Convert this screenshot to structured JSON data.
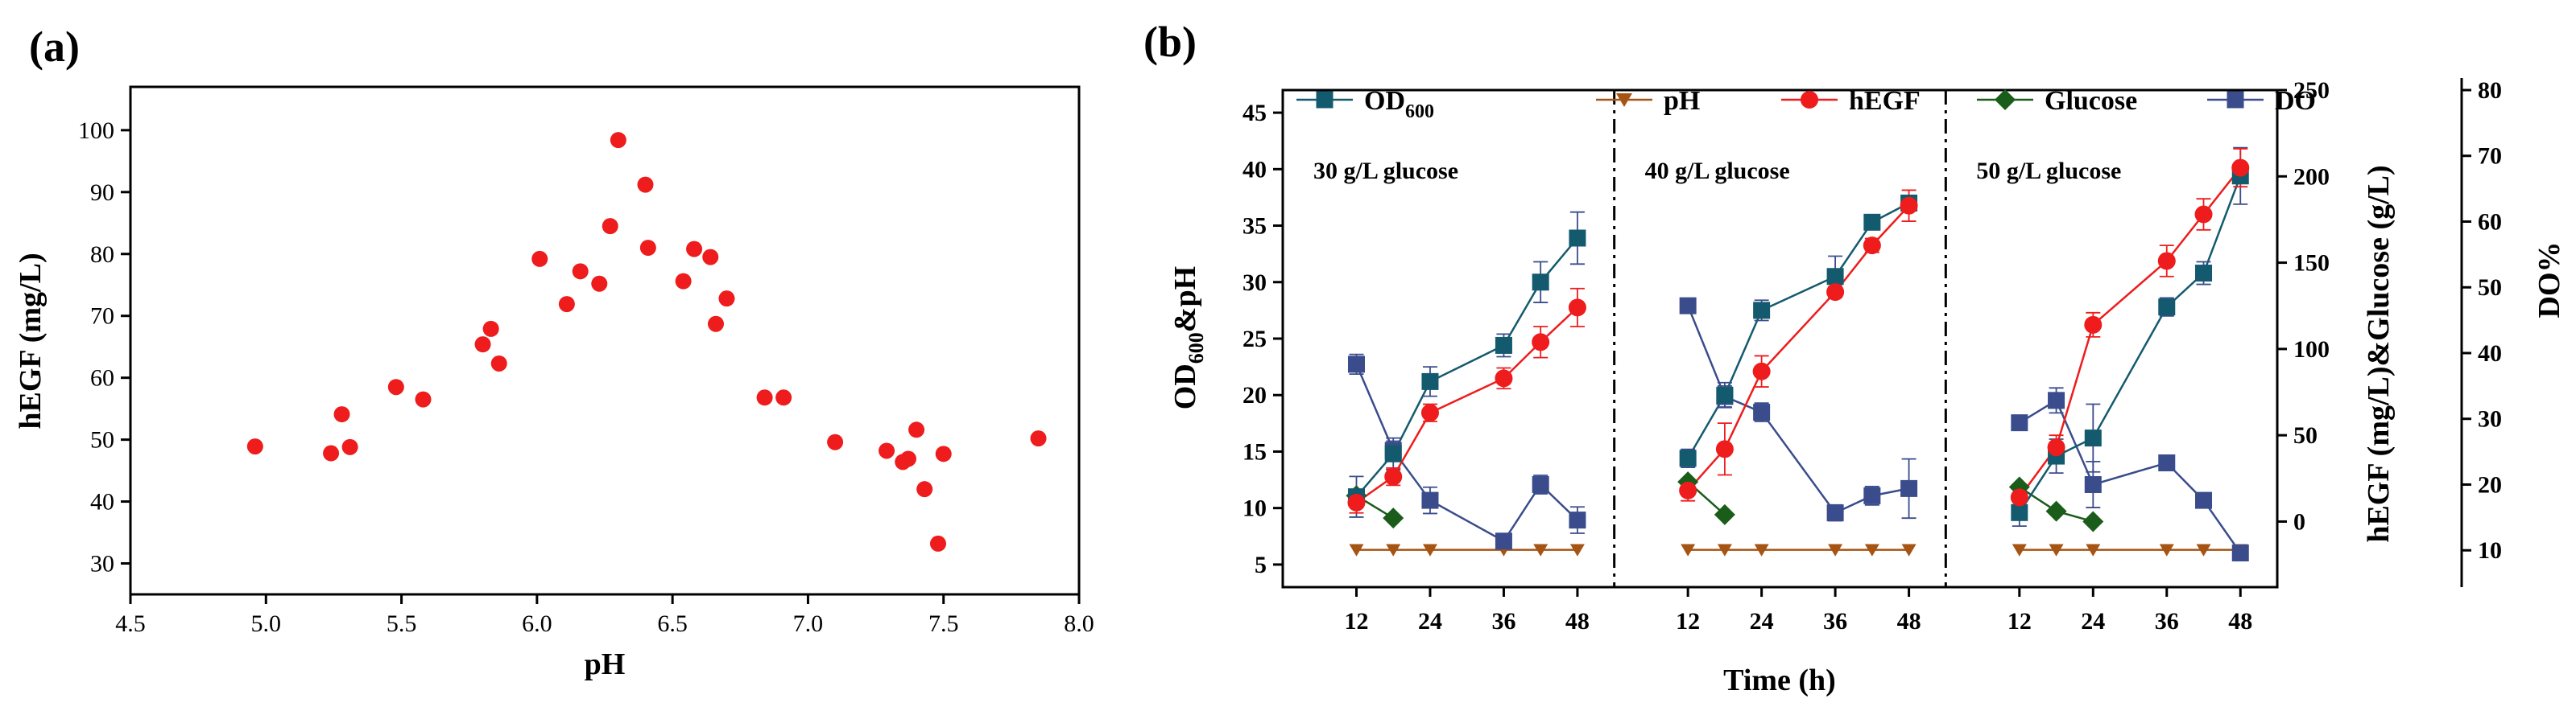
{
  "panel_a_label": "(a)",
  "panel_b_label": "(b)",
  "chart_data": [
    {
      "type": "scatter",
      "panel": "(a)",
      "title": "",
      "xlabel": "pH",
      "ylabel": "hEGF (mg/L)",
      "xlim": [
        4.5,
        8.0
      ],
      "ylim": [
        25,
        107
      ],
      "xticks": [
        4.5,
        5.0,
        5.5,
        6.0,
        6.5,
        7.0,
        7.5,
        8.0
      ],
      "xtick_labels": [
        "4.5",
        "5.0",
        "5.5",
        "6.0",
        "6.5",
        "7.0",
        "7.5",
        "8.0"
      ],
      "yticks": [
        30,
        40,
        50,
        60,
        70,
        80,
        90,
        100
      ],
      "ytick_labels": [
        "30",
        "40",
        "50",
        "60",
        "70",
        "80",
        "90",
        "100"
      ],
      "grid": false,
      "color": "#ee1c1c",
      "points": [
        [
          4.96,
          48.9
        ],
        [
          5.24,
          47.8
        ],
        [
          5.28,
          54.1
        ],
        [
          5.31,
          48.8
        ],
        [
          5.48,
          58.5
        ],
        [
          5.58,
          56.5
        ],
        [
          5.8,
          65.4
        ],
        [
          5.83,
          67.9
        ],
        [
          5.86,
          62.3
        ],
        [
          6.01,
          79.2
        ],
        [
          6.11,
          71.9
        ],
        [
          6.16,
          77.2
        ],
        [
          6.23,
          75.2
        ],
        [
          6.27,
          84.5
        ],
        [
          6.3,
          98.4
        ],
        [
          6.4,
          91.2
        ],
        [
          6.41,
          81.0
        ],
        [
          6.54,
          75.6
        ],
        [
          6.58,
          80.8
        ],
        [
          6.64,
          79.5
        ],
        [
          6.66,
          68.7
        ],
        [
          6.7,
          72.8
        ],
        [
          6.84,
          56.8
        ],
        [
          6.91,
          56.8
        ],
        [
          7.1,
          49.6
        ],
        [
          7.29,
          48.2
        ],
        [
          7.35,
          46.4
        ],
        [
          7.37,
          46.9
        ],
        [
          7.4,
          51.6
        ],
        [
          7.43,
          42.0
        ],
        [
          7.48,
          33.2
        ],
        [
          7.5,
          47.7
        ],
        [
          7.85,
          50.2
        ]
      ]
    },
    {
      "type": "line",
      "panel": "(b)",
      "xlabel": "Time (h)",
      "x_range": [
        0,
        54
      ],
      "x_ticks": [
        12,
        24,
        36,
        48
      ],
      "x_tick_labels": [
        "12",
        "24",
        "36",
        "48"
      ],
      "axes": {
        "left": {
          "label_main": "OD",
          "label_sub": "600",
          "label_rest": "&pH",
          "range": [
            3,
            47
          ],
          "ticks": [
            5,
            10,
            15,
            20,
            25,
            30,
            35,
            40,
            45
          ],
          "tick_labels": [
            "5",
            "10",
            "15",
            "20",
            "25",
            "30",
            "35",
            "40",
            "45"
          ]
        },
        "right1": {
          "label": "hEGF (mg/L)&Glucose (g/L)",
          "range": [
            -38,
            250
          ],
          "ticks": [
            0,
            50,
            100,
            150,
            200,
            250
          ],
          "tick_labels": [
            "0",
            "50",
            "100",
            "150",
            "200",
            "250"
          ]
        },
        "right2": {
          "label": "DO%",
          "range": [
            4.4,
            80
          ],
          "ticks": [
            10,
            20,
            30,
            40,
            50,
            60,
            70,
            80
          ],
          "tick_labels": [
            "10",
            "20",
            "30",
            "40",
            "50",
            "60",
            "70",
            "80"
          ]
        }
      },
      "legend_position": "top",
      "legend": [
        {
          "name": "OD",
          "sub": "600",
          "color": "#145a6e",
          "marker": "square"
        },
        {
          "name": "pH",
          "sub": "",
          "color": "#a65414",
          "marker": "triangle-down"
        },
        {
          "name": "hEGF",
          "sub": "",
          "color": "#ee1c1c",
          "marker": "circle"
        },
        {
          "name": "Glucose",
          "sub": "",
          "color": "#1a5c1a",
          "marker": "diamond"
        },
        {
          "name": "DO",
          "sub": "",
          "color": "#3a4c8c",
          "marker": "square"
        }
      ],
      "conditions": [
        {
          "label": "30 g/L glucose",
          "series": {
            "OD600": {
              "x": [
                12,
                18,
                24,
                36,
                42,
                48
              ],
              "y": [
                11.0,
                14.8,
                21.2,
                24.4,
                30.0,
                33.9
              ],
              "err": [
                1.8,
                1.4,
                1.3,
                1.0,
                1.8,
                2.3
              ]
            },
            "pH": {
              "x": [
                12,
                18,
                24,
                36,
                42,
                48
              ],
              "y": [
                6.3,
                6.3,
                6.3,
                6.3,
                6.3,
                6.3
              ]
            },
            "hEGF": {
              "x": [
                12,
                18,
                24,
                36,
                42,
                48
              ],
              "y": [
                11,
                26,
                63,
                83,
                104,
                124
              ],
              "err": [
                6,
                5,
                5,
                6,
                9,
                11
              ]
            },
            "Glucose": {
              "x": [
                12,
                18
              ],
              "y": [
                15,
                2
              ]
            },
            "DO": {
              "x": [
                12,
                18,
                24,
                36,
                42,
                48
              ],
              "y": [
                38.3,
                25.2,
                17.6,
                11.4,
                20.0,
                14.6
              ],
              "err": [
                1.5,
                1.4,
                2.0,
                0.7,
                1.4,
                2.0
              ]
            }
          }
        },
        {
          "label": "40 g/L glucose",
          "series": {
            "OD600": {
              "x": [
                12,
                18,
                24,
                36,
                42,
                48
              ],
              "y": [
                14.4,
                20.0,
                27.5,
                30.5,
                35.3,
                37.0
              ],
              "err": [
                0.8,
                1.1,
                0.9,
                1.8,
                0.6,
                0.6
              ]
            },
            "pH": {
              "x": [
                12,
                18,
                24,
                36,
                42,
                48
              ],
              "y": [
                6.3,
                6.3,
                6.3,
                6.3,
                6.3,
                6.3
              ]
            },
            "hEGF": {
              "x": [
                12,
                18,
                24,
                36,
                42,
                48
              ],
              "y": [
                18,
                42,
                87,
                133,
                160,
                183
              ],
              "err": [
                6,
                15,
                9,
                3,
                4,
                9
              ]
            },
            "Glucose": {
              "x": [
                12,
                18
              ],
              "y": [
                23,
                4
              ]
            },
            "DO": {
              "x": [
                12,
                18,
                24,
                36,
                42,
                48
              ],
              "y": [
                47.2,
                33.4,
                31.0,
                15.7,
                18.3,
                19.4
              ],
              "err": [
                0,
                1.6,
                1.4,
                1.2,
                1.4,
                4.5
              ]
            }
          }
        },
        {
          "label": "50 g/L glucose",
          "series": {
            "OD600": {
              "x": [
                12,
                18,
                24,
                36,
                42,
                48
              ],
              "y": [
                9.6,
                14.6,
                16.2,
                27.8,
                30.8,
                39.4
              ],
              "err": [
                1.2,
                1.5,
                3.0,
                0.8,
                1.0,
                2.5
              ]
            },
            "pH": {
              "x": [
                12,
                18,
                24,
                36,
                42,
                48
              ],
              "y": [
                6.3,
                6.3,
                6.3,
                6.3,
                6.3,
                6.3
              ]
            },
            "hEGF": {
              "x": [
                12,
                18,
                24,
                36,
                42,
                48
              ],
              "y": [
                14,
                43,
                114,
                151,
                178,
                205
              ],
              "err": [
                5,
                7,
                7,
                9,
                9,
                11
              ]
            },
            "Glucose": {
              "x": [
                12,
                18,
                24
              ],
              "y": [
                20,
                6,
                0
              ]
            },
            "DO": {
              "x": [
                12,
                18,
                24,
                36,
                42,
                48
              ],
              "y": [
                29.4,
                32.8,
                20.0,
                23.3,
                17.6,
                9.6
              ],
              "err": [
                0.8,
                1.9,
                3.5,
                0.6,
                0.6,
                0.7
              ]
            }
          }
        }
      ]
    }
  ]
}
